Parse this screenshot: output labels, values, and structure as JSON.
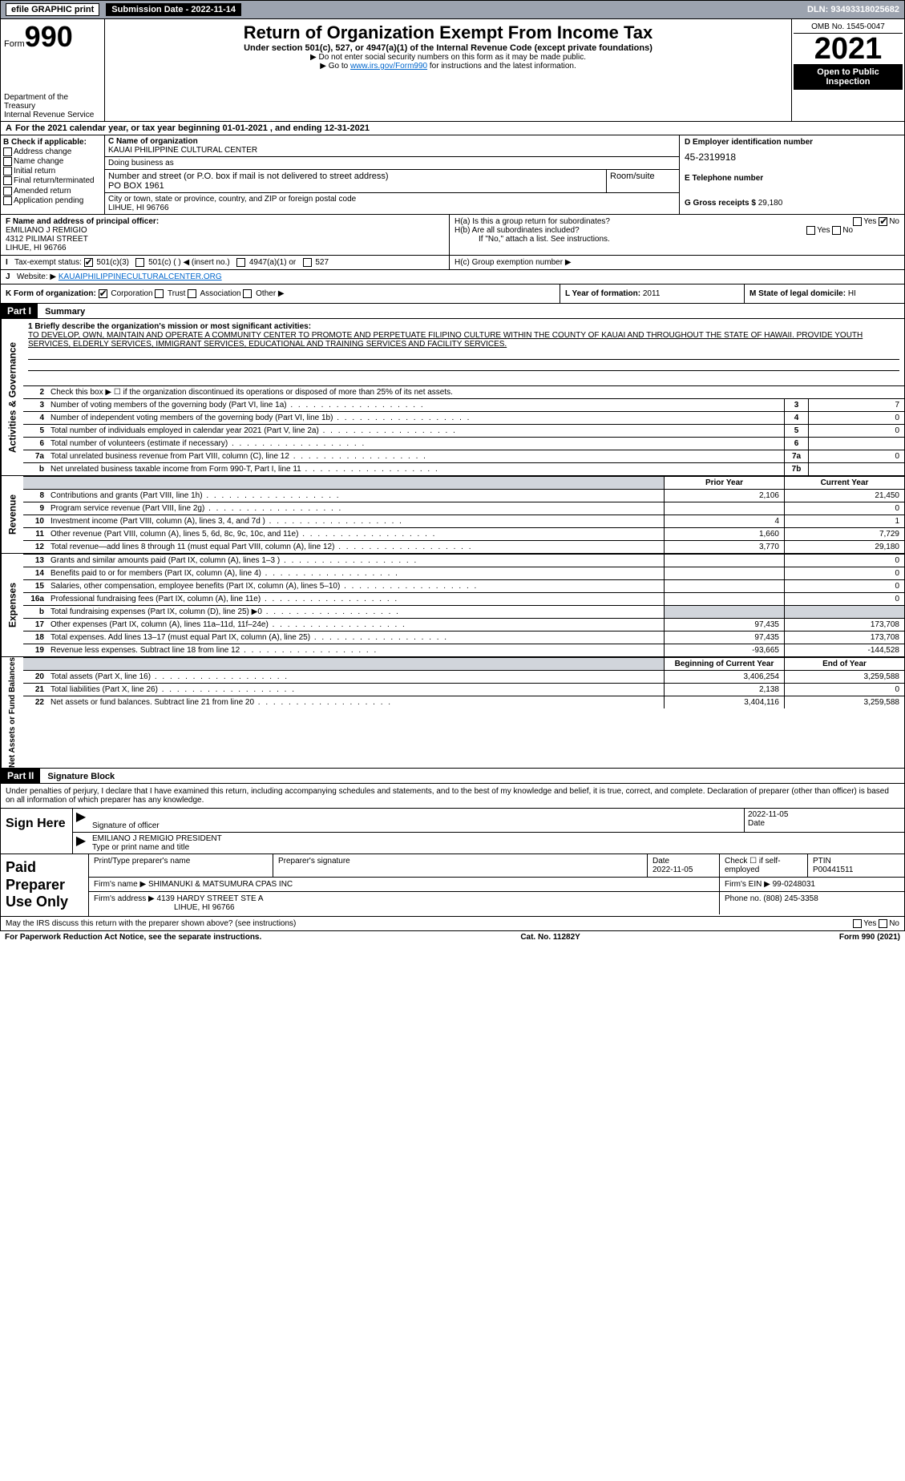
{
  "topbar": {
    "efile": "efile GRAPHIC print",
    "submission": "Submission Date - 2022-11-14",
    "dln": "DLN: 93493318025682"
  },
  "header": {
    "form_prefix": "Form",
    "form_num": "990",
    "title": "Return of Organization Exempt From Income Tax",
    "subtitle": "Under section 501(c), 527, or 4947(a)(1) of the Internal Revenue Code (except private foundations)",
    "note1": "▶ Do not enter social security numbers on this form as it may be made public.",
    "note2": "▶ Go to ",
    "note2_link": "www.irs.gov/Form990",
    "note2_suffix": " for instructions and the latest information.",
    "omb": "OMB No. 1545-0047",
    "year": "2021",
    "open_pub": "Open to Public Inspection",
    "dept": "Department of the Treasury\nInternal Revenue Service"
  },
  "period": "For the 2021 calendar year, or tax year beginning 01-01-2021    , and ending 12-31-2021",
  "A": "A",
  "B": {
    "label": "B Check if applicable:",
    "items": [
      "Address change",
      "Name change",
      "Initial return",
      "Final return/terminated",
      "Amended return",
      "Application pending"
    ]
  },
  "C": {
    "name_label": "C Name of organization",
    "name": "KAUAI PHILIPPINE CULTURAL CENTER",
    "dba_label": "Doing business as",
    "addr_label": "Number and street (or P.O. box if mail is not delivered to street address)",
    "addr": "PO BOX 1961",
    "room_label": "Room/suite",
    "city_label": "City or town, state or province, country, and ZIP or foreign postal code",
    "city": "LIHUE, HI  96766"
  },
  "D": {
    "label": "D Employer identification number",
    "ein": "45-2319918"
  },
  "E": {
    "label": "E Telephone number"
  },
  "G": {
    "label": "G Gross receipts $",
    "val": "29,180"
  },
  "F": {
    "label": "F  Name and address of principal officer:",
    "name": "EMILIANO J REMIGIO",
    "addr1": "4312 PILIMAI STREET",
    "addr2": "LIHUE, HI  96766"
  },
  "H": {
    "a": "H(a)  Is this a group return for subordinates?",
    "b": "H(b)  Are all subordinates included?",
    "b_note": "If \"No,\" attach a list. See instructions.",
    "c": "H(c)  Group exemption number ▶",
    "yes": "Yes",
    "no": "No"
  },
  "I": {
    "label": "Tax-exempt status:",
    "opts": [
      "501(c)(3)",
      "501(c) (   ) ◀ (insert no.)",
      "4947(a)(1) or",
      "527"
    ]
  },
  "J": {
    "label": "Website: ▶",
    "val": "KAUAIPHILIPPINECULTURALCENTER.ORG"
  },
  "K": {
    "label": "K Form of organization:",
    "opts": [
      "Corporation",
      "Trust",
      "Association",
      "Other ▶"
    ]
  },
  "L": {
    "label": "L Year of formation:",
    "val": "2011"
  },
  "M": {
    "label": "M State of legal domicile:",
    "val": "HI"
  },
  "part1": {
    "hdr": "Part I",
    "title": "Summary",
    "line1_label": "1  Briefly describe the organization's mission or most significant activities:",
    "mission": "TO DEVELOP, OWN, MAINTAIN AND OPERATE A COMMUNITY CENTER TO PROMOTE AND PERPETUATE FILIPINO CULTURE WITHIN THE COUNTY OF KAUAI AND THROUGHOUT THE STATE OF HAWAII. PROVIDE YOUTH SERVICES, ELDERLY SERVICES, IMMIGRANT SERVICES, EDUCATIONAL AND TRAINING SERVICES AND FACILITY SERVICES.",
    "line2": "Check this box ▶ ☐  if the organization discontinued its operations or disposed of more than 25% of its net assets.",
    "sidebar1": "Activities & Governance",
    "sidebar2": "Revenue",
    "sidebar3": "Expenses",
    "sidebar4": "Net Assets or Fund Balances",
    "rows_ag": [
      {
        "n": "3",
        "lbl": "Number of voting members of the governing body (Part VI, line 1a)",
        "box": "3",
        "v": "7"
      },
      {
        "n": "4",
        "lbl": "Number of independent voting members of the governing body (Part VI, line 1b)",
        "box": "4",
        "v": "0"
      },
      {
        "n": "5",
        "lbl": "Total number of individuals employed in calendar year 2021 (Part V, line 2a)",
        "box": "5",
        "v": "0"
      },
      {
        "n": "6",
        "lbl": "Total number of volunteers (estimate if necessary)",
        "box": "6",
        "v": ""
      },
      {
        "n": "7a",
        "lbl": "Total unrelated business revenue from Part VIII, column (C), line 12",
        "box": "7a",
        "v": "0"
      },
      {
        "n": "b",
        "lbl": "Net unrelated business taxable income from Form 990-T, Part I, line 11",
        "box": "7b",
        "v": ""
      }
    ],
    "col_prior": "Prior Year",
    "col_current": "Current Year",
    "rows_rev": [
      {
        "n": "8",
        "lbl": "Contributions and grants (Part VIII, line 1h)",
        "p": "2,106",
        "c": "21,450"
      },
      {
        "n": "9",
        "lbl": "Program service revenue (Part VIII, line 2g)",
        "p": "",
        "c": "0"
      },
      {
        "n": "10",
        "lbl": "Investment income (Part VIII, column (A), lines 3, 4, and 7d )",
        "p": "4",
        "c": "1"
      },
      {
        "n": "11",
        "lbl": "Other revenue (Part VIII, column (A), lines 5, 6d, 8c, 9c, 10c, and 11e)",
        "p": "1,660",
        "c": "7,729"
      },
      {
        "n": "12",
        "lbl": "Total revenue—add lines 8 through 11 (must equal Part VIII, column (A), line 12)",
        "p": "3,770",
        "c": "29,180"
      }
    ],
    "rows_exp": [
      {
        "n": "13",
        "lbl": "Grants and similar amounts paid (Part IX, column (A), lines 1–3 )",
        "p": "",
        "c": "0"
      },
      {
        "n": "14",
        "lbl": "Benefits paid to or for members (Part IX, column (A), line 4)",
        "p": "",
        "c": "0"
      },
      {
        "n": "15",
        "lbl": "Salaries, other compensation, employee benefits (Part IX, column (A), lines 5–10)",
        "p": "",
        "c": "0"
      },
      {
        "n": "16a",
        "lbl": "Professional fundraising fees (Part IX, column (A), line 11e)",
        "p": "",
        "c": "0"
      },
      {
        "n": "b",
        "lbl": "Total fundraising expenses (Part IX, column (D), line 25) ▶0",
        "p": "gray",
        "c": "gray"
      },
      {
        "n": "17",
        "lbl": "Other expenses (Part IX, column (A), lines 11a–11d, 11f–24e)",
        "p": "97,435",
        "c": "173,708"
      },
      {
        "n": "18",
        "lbl": "Total expenses. Add lines 13–17 (must equal Part IX, column (A), line 25)",
        "p": "97,435",
        "c": "173,708"
      },
      {
        "n": "19",
        "lbl": "Revenue less expenses. Subtract line 18 from line 12",
        "p": "-93,665",
        "c": "-144,528"
      }
    ],
    "col_begin": "Beginning of Current Year",
    "col_end": "End of Year",
    "rows_net": [
      {
        "n": "20",
        "lbl": "Total assets (Part X, line 16)",
        "p": "3,406,254",
        "c": "3,259,588"
      },
      {
        "n": "21",
        "lbl": "Total liabilities (Part X, line 26)",
        "p": "2,138",
        "c": "0"
      },
      {
        "n": "22",
        "lbl": "Net assets or fund balances. Subtract line 21 from line 20",
        "p": "3,404,116",
        "c": "3,259,588"
      }
    ]
  },
  "part2": {
    "hdr": "Part II",
    "title": "Signature Block",
    "text": "Under penalties of perjury, I declare that I have examined this return, including accompanying schedules and statements, and to the best of my knowledge and belief, it is true, correct, and complete. Declaration of preparer (other than officer) is based on all information of which preparer has any knowledge.",
    "sign_here": "Sign Here",
    "sig_officer": "Signature of officer",
    "sig_date": "2022-11-05",
    "date_lbl": "Date",
    "name": "EMILIANO J REMIGIO PRESIDENT",
    "name_lbl": "Type or print name and title",
    "paid": "Paid Preparer Use Only",
    "prep_name_lbl": "Print/Type preparer's name",
    "prep_sig_lbl": "Preparer's signature",
    "prep_date_lbl": "Date",
    "prep_date": "2022-11-05",
    "check_lbl": "Check ☐ if self-employed",
    "ptin_lbl": "PTIN",
    "ptin": "P00441511",
    "firm_name_lbl": "Firm's name    ▶",
    "firm_name": "SHIMANUKI & MATSUMURA CPAS INC",
    "firm_ein_lbl": "Firm's EIN ▶",
    "firm_ein": "99-0248031",
    "firm_addr_lbl": "Firm's address ▶",
    "firm_addr": "4139 HARDY STREET STE A",
    "firm_addr2": "LIHUE, HI  96766",
    "phone_lbl": "Phone no.",
    "phone": "(808) 245-3358",
    "discuss": "May the IRS discuss this return with the preparer shown above? (see instructions)",
    "paperwork": "For Paperwork Reduction Act Notice, see the separate instructions.",
    "cat": "Cat. No. 11282Y",
    "form_foot": "Form 990 (2021)"
  }
}
